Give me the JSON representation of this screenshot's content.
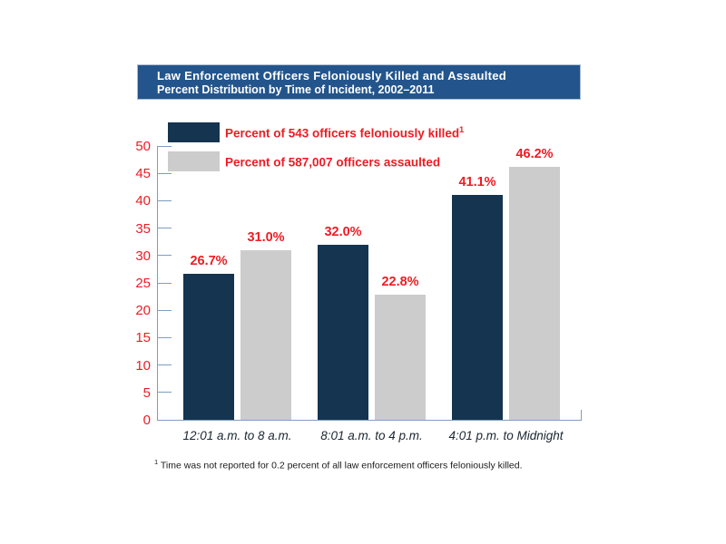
{
  "chart_data": {
    "type": "bar",
    "title": "Law Enforcement Officers Feloniously Killed and Assaulted",
    "subtitle": "Percent Distribution by Time of Incident, 2002–2011",
    "categories": [
      "12:01 a.m. to 8 a.m.",
      "8:01 a.m. to 4 p.m.",
      "4:01 p.m. to Midnight"
    ],
    "series": [
      {
        "name": "Percent of 543 officers feloniously killed",
        "name_superscript": "1",
        "values": [
          26.7,
          32.0,
          41.1
        ],
        "labels": [
          "26.7%",
          "32.0%",
          "41.1%"
        ],
        "color": "#14344F"
      },
      {
        "name": "Percent of 587,007 officers assaulted",
        "name_superscript": "",
        "values": [
          31.0,
          22.8,
          46.2
        ],
        "labels": [
          "31.0%",
          "22.8%",
          "46.2%"
        ],
        "color": "#CCCCCC"
      }
    ],
    "ylim": [
      0,
      50
    ],
    "yticks": [
      0,
      5,
      10,
      15,
      20,
      25,
      30,
      35,
      40,
      45,
      50
    ],
    "xlabel": "",
    "ylabel": "",
    "grid": false,
    "legend_position": "top-left",
    "colors": {
      "axis": "#7E9DC0",
      "tick_label": "#ED1C24",
      "value_label": "#ED1C24",
      "category_label": "#1B2631",
      "banner_bg": "#23558C",
      "banner_text": "#FFFFFF"
    }
  },
  "footnote": {
    "marker": "1",
    "text": "Time was not reported for 0.2 percent of all law enforcement officers feloniously killed."
  }
}
